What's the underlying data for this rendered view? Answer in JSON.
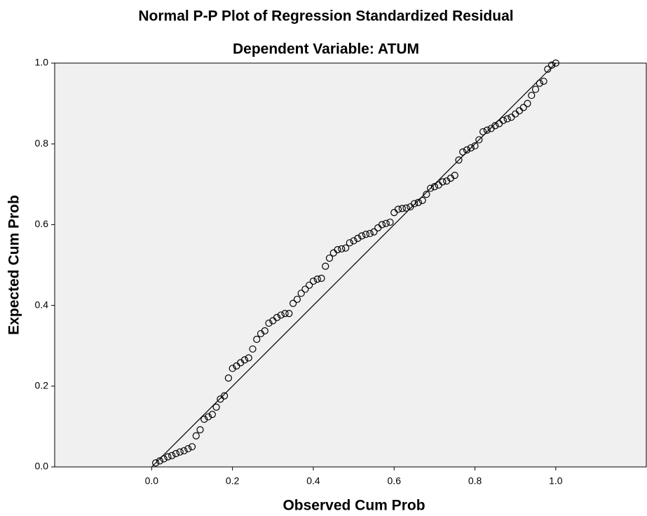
{
  "chart_data": {
    "type": "scatter",
    "title": "Normal P-P Plot of Regression Standardized Residual",
    "subtitle": "Dependent Variable: ATUM",
    "x_label": "Observed Cum Prob",
    "y_label": "Expected Cum Prob",
    "xlim": [
      -0.24,
      1.224
    ],
    "ylim": [
      0,
      1
    ],
    "xticks": [
      {
        "value": 0,
        "label": "0.0"
      },
      0.2,
      0.4,
      0.6,
      0.8,
      {
        "value": 1,
        "label": "1.0"
      }
    ],
    "yticks": [
      {
        "value": 0,
        "label": "0.0"
      },
      0.2,
      0.4,
      0.6,
      0.8,
      {
        "value": 1,
        "label": "1.0"
      }
    ],
    "reference_line": true,
    "color": "#000000",
    "x": [
      0.01,
      0.02,
      0.03,
      0.04,
      0.05,
      0.06,
      0.07,
      0.08,
      0.09,
      0.1,
      0.11,
      0.12,
      0.13,
      0.14,
      0.15,
      0.16,
      0.17,
      0.18,
      0.19,
      0.2,
      0.21,
      0.22,
      0.23,
      0.24,
      0.25,
      0.26,
      0.27,
      0.28,
      0.29,
      0.3,
      0.31,
      0.32,
      0.33,
      0.34,
      0.35,
      0.36,
      0.37,
      0.38,
      0.39,
      0.4,
      0.41,
      0.42,
      0.43,
      0.44,
      0.45,
      0.46,
      0.47,
      0.48,
      0.49,
      0.5,
      0.51,
      0.52,
      0.53,
      0.54,
      0.55,
      0.56,
      0.57,
      0.58,
      0.59,
      0.6,
      0.61,
      0.62,
      0.63,
      0.64,
      0.65,
      0.66,
      0.67,
      0.68,
      0.69,
      0.7,
      0.71,
      0.72,
      0.73,
      0.74,
      0.75,
      0.76,
      0.77,
      0.78,
      0.79,
      0.8,
      0.81,
      0.82,
      0.83,
      0.84,
      0.85,
      0.86,
      0.87,
      0.88,
      0.89,
      0.9,
      0.91,
      0.92,
      0.93,
      0.94,
      0.95,
      0.96,
      0.97,
      0.98,
      0.99,
      1.0
    ],
    "values": [
      0.01,
      0.015,
      0.02,
      0.025,
      0.028,
      0.033,
      0.037,
      0.04,
      0.045,
      0.05,
      0.077,
      0.092,
      0.118,
      0.124,
      0.13,
      0.148,
      0.168,
      0.176,
      0.22,
      0.244,
      0.25,
      0.258,
      0.265,
      0.27,
      0.292,
      0.316,
      0.33,
      0.337,
      0.356,
      0.362,
      0.37,
      0.376,
      0.38,
      0.38,
      0.405,
      0.415,
      0.43,
      0.44,
      0.45,
      0.46,
      0.465,
      0.467,
      0.497,
      0.517,
      0.53,
      0.538,
      0.54,
      0.542,
      0.555,
      0.56,
      0.566,
      0.572,
      0.576,
      0.578,
      0.582,
      0.592,
      0.6,
      0.603,
      0.606,
      0.63,
      0.638,
      0.64,
      0.641,
      0.644,
      0.652,
      0.655,
      0.66,
      0.675,
      0.69,
      0.694,
      0.698,
      0.706,
      0.708,
      0.715,
      0.722,
      0.76,
      0.78,
      0.785,
      0.79,
      0.795,
      0.81,
      0.83,
      0.834,
      0.838,
      0.845,
      0.85,
      0.858,
      0.862,
      0.866,
      0.874,
      0.882,
      0.89,
      0.9,
      0.92,
      0.935,
      0.95,
      0.955,
      0.985,
      0.995,
      1.0
    ]
  }
}
